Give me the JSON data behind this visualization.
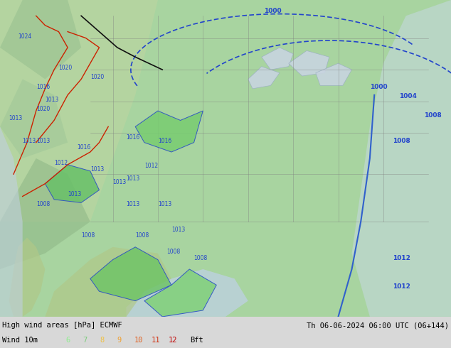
{
  "title_left": "High wind areas [hPa] ECMWF",
  "title_right": "Th 06-06-2024 06:00 UTC (06+144)",
  "legend_label": "Wind 10m",
  "legend_numbers": [
    "6",
    "7",
    "8",
    "9",
    "10",
    "11",
    "12"
  ],
  "legend_unit": "Bft",
  "legend_colors": [
    "#90ee90",
    "#7ccd7c",
    "#f0c040",
    "#f0a030",
    "#e06020",
    "#d03010",
    "#c00000"
  ],
  "bg_color": "#c8dbc8",
  "map_bg": "#a8d4a0",
  "water_color": "#b0c8e0",
  "border_color": "#606060",
  "text_color": "#000000",
  "label_font_size": 8,
  "caption_font_size": 7.5,
  "fig_width": 6.34,
  "fig_height": 4.9,
  "dpi": 100,
  "bottom_bar_color": "#d8d8d8",
  "pressure_line_color": "#2244cc",
  "contour_red": "#cc2200",
  "contour_black": "#111111"
}
